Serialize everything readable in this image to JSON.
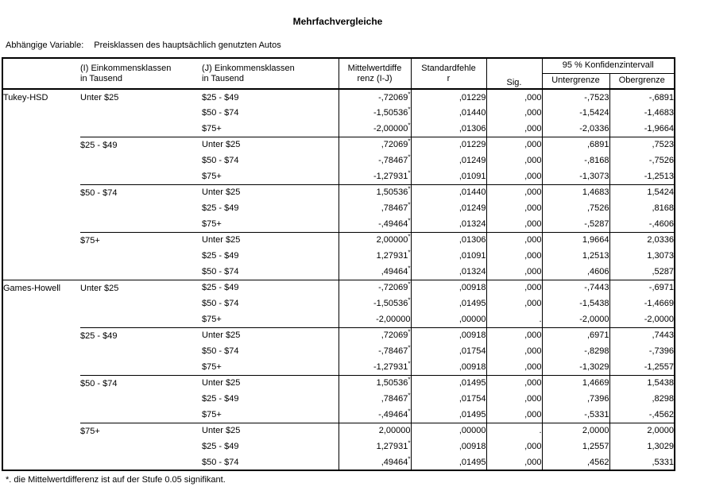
{
  "title": "Mehrfachvergleiche",
  "dependent": {
    "label": "Abhängige Variable:",
    "value": "Preisklassen des hauptsächlich genutzten Autos"
  },
  "header": {
    "col_i": "(I) Einkommensklassen\nin Tausend",
    "col_j": "(J) Einkommensklassen\nin Tausend",
    "mean_diff": "Mittelwertdiffe\nrenz (I-J)",
    "std_error": "Standardfehle\nr",
    "sig": "Sig.",
    "ci": "95 % Konfidenzintervall",
    "lower": "Untergrenze",
    "upper": "Obergrenze"
  },
  "star_symbol": "*",
  "footnote": "*. die Mittelwertdifferenz ist auf der Stufe 0.05 signifikant.",
  "table": {
    "sections": [
      {
        "method": "Tukey-HSD",
        "groups": [
          {
            "i": "Unter $25",
            "rows": [
              {
                "j": "$25 - $49",
                "diff": "-,72069",
                "star": true,
                "se": ",01229",
                "sig": ",000",
                "lower": "-,7523",
                "upper": "-,6891"
              },
              {
                "j": "$50 - $74",
                "diff": "-1,50536",
                "star": true,
                "se": ",01440",
                "sig": ",000",
                "lower": "-1,5424",
                "upper": "-1,4683"
              },
              {
                "j": "$75+",
                "diff": "-2,00000",
                "star": true,
                "se": ",01306",
                "sig": ",000",
                "lower": "-2,0336",
                "upper": "-1,9664"
              }
            ]
          },
          {
            "i": "$25 - $49",
            "rows": [
              {
                "j": "Unter $25",
                "diff": ",72069",
                "star": true,
                "se": ",01229",
                "sig": ",000",
                "lower": ",6891",
                "upper": ",7523"
              },
              {
                "j": "$50 - $74",
                "diff": "-,78467",
                "star": true,
                "se": ",01249",
                "sig": ",000",
                "lower": "-,8168",
                "upper": "-,7526"
              },
              {
                "j": "$75+",
                "diff": "-1,27931",
                "star": true,
                "se": ",01091",
                "sig": ",000",
                "lower": "-1,3073",
                "upper": "-1,2513"
              }
            ]
          },
          {
            "i": "$50 - $74",
            "rows": [
              {
                "j": "Unter $25",
                "diff": "1,50536",
                "star": true,
                "se": ",01440",
                "sig": ",000",
                "lower": "1,4683",
                "upper": "1,5424"
              },
              {
                "j": "$25 - $49",
                "diff": ",78467",
                "star": true,
                "se": ",01249",
                "sig": ",000",
                "lower": ",7526",
                "upper": ",8168"
              },
              {
                "j": "$75+",
                "diff": "-,49464",
                "star": true,
                "se": ",01324",
                "sig": ",000",
                "lower": "-,5287",
                "upper": "-,4606"
              }
            ]
          },
          {
            "i": "$75+",
            "rows": [
              {
                "j": "Unter $25",
                "diff": "2,00000",
                "star": true,
                "se": ",01306",
                "sig": ",000",
                "lower": "1,9664",
                "upper": "2,0336"
              },
              {
                "j": "$25 - $49",
                "diff": "1,27931",
                "star": true,
                "se": ",01091",
                "sig": ",000",
                "lower": "1,2513",
                "upper": "1,3073"
              },
              {
                "j": "$50 - $74",
                "diff": ",49464",
                "star": true,
                "se": ",01324",
                "sig": ",000",
                "lower": ",4606",
                "upper": ",5287"
              }
            ]
          }
        ]
      },
      {
        "method": "Games-Howell",
        "groups": [
          {
            "i": "Unter $25",
            "rows": [
              {
                "j": "$25 - $49",
                "diff": "-,72069",
                "star": true,
                "se": ",00918",
                "sig": ",000",
                "lower": "-,7443",
                "upper": "-,6971"
              },
              {
                "j": "$50 - $74",
                "diff": "-1,50536",
                "star": true,
                "se": ",01495",
                "sig": ",000",
                "lower": "-1,5438",
                "upper": "-1,4669"
              },
              {
                "j": "$75+",
                "diff": "-2,00000",
                "star": false,
                "se": ",00000",
                "sig": ".",
                "lower": "-2,0000",
                "upper": "-2,0000"
              }
            ]
          },
          {
            "i": "$25 - $49",
            "rows": [
              {
                "j": "Unter $25",
                "diff": ",72069",
                "star": true,
                "se": ",00918",
                "sig": ",000",
                "lower": ",6971",
                "upper": ",7443"
              },
              {
                "j": "$50 - $74",
                "diff": "-,78467",
                "star": true,
                "se": ",01754",
                "sig": ",000",
                "lower": "-,8298",
                "upper": "-,7396"
              },
              {
                "j": "$75+",
                "diff": "-1,27931",
                "star": true,
                "se": ",00918",
                "sig": ",000",
                "lower": "-1,3029",
                "upper": "-1,2557"
              }
            ]
          },
          {
            "i": "$50 - $74",
            "rows": [
              {
                "j": "Unter $25",
                "diff": "1,50536",
                "star": true,
                "se": ",01495",
                "sig": ",000",
                "lower": "1,4669",
                "upper": "1,5438"
              },
              {
                "j": "$25 - $49",
                "diff": ",78467",
                "star": true,
                "se": ",01754",
                "sig": ",000",
                "lower": ",7396",
                "upper": ",8298"
              },
              {
                "j": "$75+",
                "diff": "-,49464",
                "star": true,
                "se": ",01495",
                "sig": ",000",
                "lower": "-,5331",
                "upper": "-,4562"
              }
            ]
          },
          {
            "i": "$75+",
            "rows": [
              {
                "j": "Unter $25",
                "diff": "2,00000",
                "star": false,
                "se": ",00000",
                "sig": ".",
                "lower": "2,0000",
                "upper": "2,0000"
              },
              {
                "j": "$25 - $49",
                "diff": "1,27931",
                "star": true,
                "se": ",00918",
                "sig": ",000",
                "lower": "1,2557",
                "upper": "1,3029"
              },
              {
                "j": "$50 - $74",
                "diff": ",49464",
                "star": true,
                "se": ",01495",
                "sig": ",000",
                "lower": ",4562",
                "upper": ",5331"
              }
            ]
          }
        ]
      }
    ]
  }
}
